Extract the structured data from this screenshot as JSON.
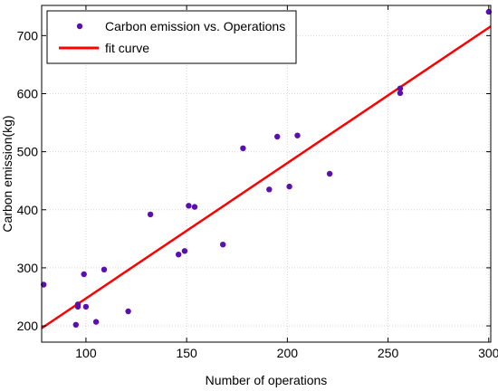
{
  "chart_data": {
    "type": "scatter",
    "xlabel": "Number of operations",
    "ylabel": "Carbon emission(kg)",
    "xlim": [
      78,
      301
    ],
    "ylim": [
      172,
      752
    ],
    "xticks": [
      100,
      150,
      200,
      250,
      300
    ],
    "yticks": [
      200,
      300,
      400,
      500,
      600,
      700
    ],
    "grid": true,
    "legend_position": "top-left",
    "series": [
      {
        "name": "Carbon emission vs. Operations",
        "kind": "points",
        "color": "#5a10b0",
        "points": [
          {
            "x": 79,
            "y": 271
          },
          {
            "x": 95,
            "y": 202
          },
          {
            "x": 96,
            "y": 233
          },
          {
            "x": 96,
            "y": 237
          },
          {
            "x": 99,
            "y": 289
          },
          {
            "x": 100,
            "y": 233
          },
          {
            "x": 105,
            "y": 207
          },
          {
            "x": 109,
            "y": 297
          },
          {
            "x": 121,
            "y": 225
          },
          {
            "x": 132,
            "y": 392
          },
          {
            "x": 146,
            "y": 323
          },
          {
            "x": 149,
            "y": 329
          },
          {
            "x": 151,
            "y": 407
          },
          {
            "x": 154,
            "y": 405
          },
          {
            "x": 168,
            "y": 340
          },
          {
            "x": 178,
            "y": 506
          },
          {
            "x": 191,
            "y": 435
          },
          {
            "x": 195,
            "y": 526
          },
          {
            "x": 201,
            "y": 440
          },
          {
            "x": 205,
            "y": 528
          },
          {
            "x": 221,
            "y": 462
          },
          {
            "x": 256,
            "y": 601
          },
          {
            "x": 256,
            "y": 609
          },
          {
            "x": 300,
            "y": 741
          }
        ]
      },
      {
        "name": "fit curve",
        "kind": "line",
        "color": "#ff0000",
        "points": [
          {
            "x": 78,
            "y": 196
          },
          {
            "x": 301,
            "y": 716
          }
        ]
      }
    ]
  }
}
